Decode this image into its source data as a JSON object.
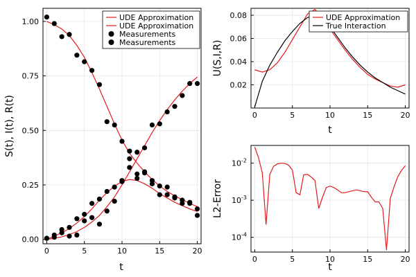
{
  "chart_data": [
    {
      "type": "line",
      "xlabel": "t",
      "ylabel": "S(t), I(t), R(t)",
      "xlim": [
        -0.5,
        20.5
      ],
      "ylim": [
        -0.02,
        1.06
      ],
      "xticks": [
        "0",
        "5",
        "10",
        "15",
        "20"
      ],
      "xtick_values": [
        0,
        5,
        10,
        15,
        20
      ],
      "yticks": [
        "0.00",
        "0.25",
        "0.50",
        "0.75",
        "1.00"
      ],
      "ytick_values": [
        0,
        0.25,
        0.5,
        0.75,
        1.0
      ],
      "grid": true,
      "legend_position": "top-right",
      "legend": [
        {
          "label": "UDE Approximation",
          "kind": "line",
          "color": "#e41a1c"
        },
        {
          "label": "UDE Approximation",
          "kind": "line",
          "color": "#e41a1c"
        },
        {
          "label": "Measurements",
          "kind": "marker",
          "color": "#000000"
        },
        {
          "label": "Measurements",
          "kind": "marker",
          "color": "#000000"
        }
      ],
      "series": [
        {
          "name": "UDE Approximation",
          "role": "susceptible",
          "kind": "line",
          "color": "#e41a1c",
          "x": [
            0,
            1,
            2,
            3,
            4,
            5,
            6,
            7,
            8,
            9,
            10,
            11,
            12,
            13,
            14,
            15,
            16,
            17,
            18,
            19,
            20
          ],
          "y": [
            1.0,
            0.985,
            0.965,
            0.935,
            0.89,
            0.835,
            0.765,
            0.69,
            0.61,
            0.53,
            0.455,
            0.395,
            0.35,
            0.31,
            0.275,
            0.245,
            0.22,
            0.2,
            0.182,
            0.165,
            0.15
          ]
        },
        {
          "name": "UDE Approximation",
          "role": "recovered",
          "kind": "line",
          "color": "#e41a1c",
          "x": [
            0,
            1,
            2,
            3,
            4,
            5,
            6,
            7,
            8,
            9,
            10,
            11,
            12,
            13,
            14,
            15,
            16,
            17,
            18,
            19,
            20
          ],
          "y": [
            0.0,
            0.005,
            0.012,
            0.022,
            0.036,
            0.055,
            0.08,
            0.11,
            0.15,
            0.195,
            0.25,
            0.31,
            0.37,
            0.43,
            0.49,
            0.545,
            0.595,
            0.64,
            0.68,
            0.715,
            0.745
          ]
        },
        {
          "name": "UDE Approximation",
          "role": "infected",
          "kind": "line",
          "color": "#e41a1c",
          "x": [
            0,
            1,
            2,
            3,
            4,
            5,
            6,
            7,
            8,
            9,
            10,
            11,
            12,
            13,
            14,
            15,
            16,
            17,
            18,
            19,
            20
          ],
          "y": [
            0.0,
            0.015,
            0.03,
            0.05,
            0.075,
            0.105,
            0.14,
            0.18,
            0.215,
            0.245,
            0.265,
            0.275,
            0.27,
            0.255,
            0.235,
            0.21,
            0.19,
            0.17,
            0.155,
            0.14,
            0.128
          ]
        },
        {
          "name": "Measurements",
          "role": "susceptible",
          "kind": "scatter",
          "color": "#000000",
          "x": [
            0,
            1,
            2,
            3,
            4,
            5,
            6,
            7,
            8,
            9,
            10,
            11,
            12,
            13,
            14,
            15,
            16,
            17,
            18,
            19,
            20
          ],
          "y": [
            1.02,
            0.99,
            0.93,
            0.94,
            0.845,
            0.815,
            0.775,
            0.71,
            0.54,
            0.525,
            0.45,
            0.405,
            0.3,
            0.31,
            0.27,
            0.245,
            0.24,
            0.19,
            0.18,
            0.165,
            0.14
          ]
        },
        {
          "name": "Measurements",
          "role": "recovered",
          "kind": "scatter",
          "color": "#000000",
          "x": [
            0,
            1,
            2,
            3,
            4,
            5,
            6,
            7,
            8,
            9,
            10,
            11,
            12,
            13,
            14,
            15,
            16,
            17,
            18,
            19,
            20
          ],
          "y": [
            0.005,
            0.01,
            0.03,
            0.015,
            0.02,
            0.085,
            0.1,
            0.07,
            0.13,
            0.175,
            0.27,
            0.37,
            0.4,
            0.42,
            0.525,
            0.53,
            0.585,
            0.61,
            0.66,
            0.715,
            0.715
          ]
        },
        {
          "name": "Measurements",
          "role": "infected",
          "kind": "scatter",
          "color": "#000000",
          "x": [
            0,
            1,
            2,
            3,
            4,
            5,
            6,
            7,
            8,
            9,
            10,
            11,
            12,
            13,
            14,
            15,
            16,
            17,
            18,
            19,
            20
          ],
          "y": [
            0.005,
            0.02,
            0.045,
            0.055,
            0.095,
            0.115,
            0.165,
            0.185,
            0.22,
            0.24,
            0.265,
            0.33,
            0.28,
            0.305,
            0.255,
            0.205,
            0.205,
            0.195,
            0.165,
            0.17,
            0.11
          ]
        }
      ]
    },
    {
      "type": "line",
      "xlabel": "t",
      "ylabel": "U(S,I,R)",
      "xlim": [
        -0.5,
        20.5
      ],
      "ylim": [
        0.0,
        0.086
      ],
      "xticks": [
        "0",
        "5",
        "10",
        "15",
        "20"
      ],
      "xtick_values": [
        0,
        5,
        10,
        15,
        20
      ],
      "yticks": [
        "0.02",
        "0.04",
        "0.06",
        "0.08"
      ],
      "ytick_values": [
        0.02,
        0.04,
        0.06,
        0.08
      ],
      "grid": true,
      "legend_position": "top-right",
      "legend": [
        {
          "label": "UDE Approximation",
          "kind": "line",
          "color": "#e41a1c"
        },
        {
          "label": "True Interaction",
          "kind": "line",
          "color": "#000000"
        }
      ],
      "series": [
        {
          "name": "UDE Approximation",
          "kind": "line",
          "color": "#e41a1c",
          "x": [
            0,
            1,
            2,
            3,
            4,
            5,
            6,
            7,
            8,
            9,
            10,
            11,
            12,
            13,
            14,
            15,
            16,
            17,
            18,
            19,
            20
          ],
          "y": [
            0.033,
            0.031,
            0.033,
            0.039,
            0.048,
            0.059,
            0.07,
            0.081,
            0.085,
            0.078,
            0.068,
            0.059,
            0.05,
            0.042,
            0.035,
            0.029,
            0.025,
            0.022,
            0.019,
            0.018,
            0.02
          ]
        },
        {
          "name": "True Interaction",
          "kind": "line",
          "color": "#000000",
          "x": [
            0,
            1,
            2,
            3,
            4,
            5,
            6,
            7,
            8,
            9,
            10,
            11,
            12,
            13,
            14,
            15,
            16,
            17,
            18,
            19,
            20
          ],
          "y": [
            0.001,
            0.023,
            0.037,
            0.048,
            0.058,
            0.066,
            0.073,
            0.078,
            0.08,
            0.077,
            0.07,
            0.061,
            0.052,
            0.044,
            0.037,
            0.031,
            0.026,
            0.022,
            0.018,
            0.015,
            0.012
          ]
        }
      ]
    },
    {
      "type": "line",
      "xlabel": "t",
      "ylabel": "L2-Error",
      "yscale": "log",
      "xlim": [
        -0.5,
        20.5
      ],
      "ylim": [
        4e-05,
        0.03
      ],
      "xticks": [
        "0",
        "5",
        "10",
        "15",
        "20"
      ],
      "xtick_values": [
        0,
        5,
        10,
        15,
        20
      ],
      "yticks": [
        "10-4",
        "10-3",
        "10-2"
      ],
      "ytick_values": [
        0.0001,
        0.001,
        0.01
      ],
      "grid": true,
      "series": [
        {
          "name": "",
          "kind": "line",
          "color": "#e41a1c",
          "x": [
            0,
            0.5,
            1,
            1.5,
            2,
            2.5,
            3,
            3.5,
            4,
            4.5,
            5,
            5.5,
            6,
            6.5,
            7,
            7.5,
            8,
            8.5,
            9,
            9.5,
            10,
            10.5,
            11,
            11.5,
            12,
            12.5,
            13,
            13.5,
            14,
            14.5,
            15,
            15.5,
            16,
            16.5,
            17,
            17.5,
            18,
            18.5,
            19,
            19.5,
            20
          ],
          "y": [
            0.027,
            0.014,
            0.0055,
            0.00022,
            0.005,
            0.0082,
            0.0095,
            0.01,
            0.0098,
            0.0088,
            0.0065,
            0.0016,
            0.0014,
            0.0048,
            0.005,
            0.0042,
            0.0034,
            0.0006,
            0.0012,
            0.0022,
            0.0024,
            0.0022,
            0.0019,
            0.0016,
            0.0016,
            0.0017,
            0.0018,
            0.0019,
            0.0018,
            0.0017,
            0.0017,
            0.0012,
            0.0009,
            0.0009,
            0.0006,
            4.5e-05,
            0.0011,
            0.0023,
            0.0043,
            0.0064,
            0.0085
          ]
        }
      ]
    }
  ]
}
